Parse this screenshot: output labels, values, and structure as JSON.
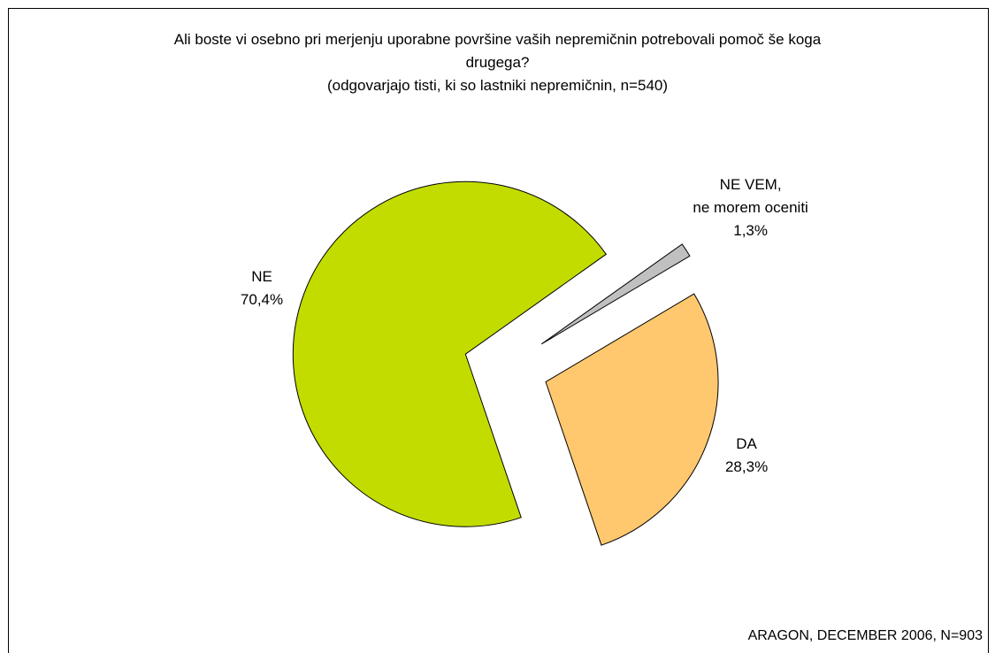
{
  "chart_data": {
    "type": "pie",
    "title": "Ali boste vi osebno pri merjenju uporabne površine vaših nepremičnin potrebovali pomoč še koga drugega?",
    "subtitle": "(odgovarjajo tisti, ki so lastniki nepremičnin, n=540)",
    "source": "ARAGON, DECEMBER 2006, N=903",
    "categories": [
      "DA",
      "NE",
      "NE VEM,\nne morem oceniti"
    ],
    "values": [
      28.3,
      70.4,
      1.3
    ],
    "value_labels": [
      "28,3%",
      "70,4%",
      "1,3%"
    ],
    "colors": [
      "#ffc86e",
      "#c2dc00",
      "#c0c0c0"
    ]
  }
}
